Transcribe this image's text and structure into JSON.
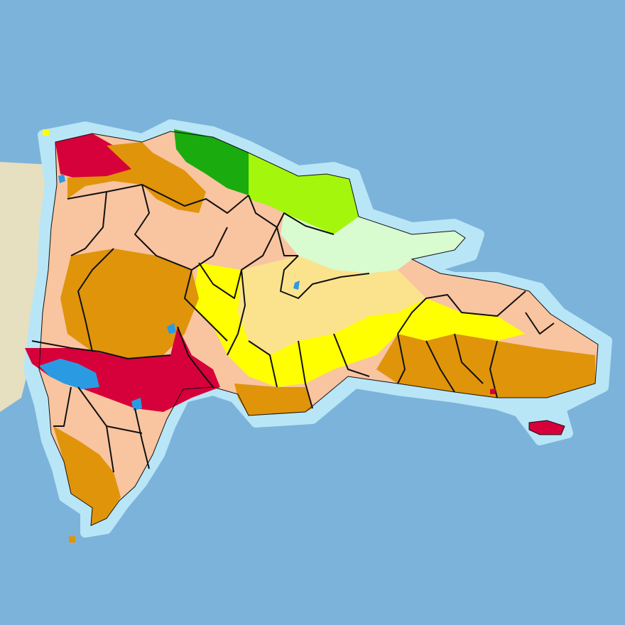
{
  "map": {
    "ocean_color": "#7cb3da",
    "coast_halo_color": "#b8e6f7",
    "haiti_color": "#e6dfc0",
    "border_color": "#111111",
    "water_color": "#2a9be3"
  },
  "legend_colors": {
    "severe_dry": "#d6003a",
    "dry": "#e0940a",
    "moderately_dry": "#f9c4a0",
    "slightly_dry": "#ffff00",
    "near_normal_dry": "#fbe38e",
    "near_normal_wet": "#d8fbd0",
    "moderately_wet": "#a4f60c",
    "very_wet": "#1aab0e"
  },
  "zones": [
    {
      "id": "northwest-severe",
      "cls": "severe_dry"
    },
    {
      "id": "northwest-dry",
      "cls": "dry"
    },
    {
      "id": "north-coast-veryWet",
      "cls": "very_wet"
    },
    {
      "id": "northeast-moderatelyWet",
      "cls": "moderately_wet"
    },
    {
      "id": "samana-nearNormalWet",
      "cls": "near_normal_wet"
    },
    {
      "id": "center-nearNormal",
      "cls": "near_normal_dry"
    },
    {
      "id": "center-slightlyDry",
      "cls": "slightly_dry"
    },
    {
      "id": "central-west-dry",
      "cls": "dry"
    },
    {
      "id": "southwest-severe",
      "cls": "severe_dry"
    },
    {
      "id": "pedernales-dry",
      "cls": "dry"
    },
    {
      "id": "south-coast-dry",
      "cls": "dry"
    },
    {
      "id": "east-dry",
      "cls": "dry"
    },
    {
      "id": "east-moderatelyDry",
      "cls": "moderately_dry"
    },
    {
      "id": "saona-island",
      "cls": "severe_dry"
    }
  ]
}
